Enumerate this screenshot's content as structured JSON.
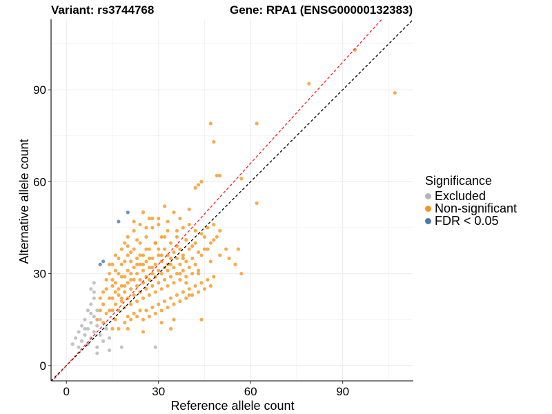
{
  "colors": {
    "excluded": "#b4b4b4",
    "non_significant": "#f7961e",
    "fdr": "#4a7aa6",
    "grid": "#ebebeb",
    "fit_line": "#ff1a1a",
    "identity_line": "#000000"
  },
  "legend": {
    "title": "Significance",
    "items": [
      {
        "key": "excluded",
        "label": "Excluded"
      },
      {
        "key": "non_significant",
        "label": "Non-significant"
      },
      {
        "key": "fdr",
        "label": "FDR < 0.05"
      }
    ]
  },
  "chart_data": {
    "type": "scatter",
    "title_left": "Variant: rs3744768",
    "title_right": "Gene: RPA1 (ENSG00000132383)",
    "xlabel": "Reference allele count",
    "ylabel": "Alternative allele count",
    "xlim": [
      -5,
      113
    ],
    "ylim": [
      -5,
      113
    ],
    "xticks": [
      0,
      30,
      60,
      90
    ],
    "yticks": [
      0,
      30,
      60,
      90
    ],
    "grid": true,
    "reference_lines": [
      {
        "name": "identity",
        "style": "dashed",
        "color": "#000000",
        "slope": 1,
        "intercept": 0
      },
      {
        "name": "fit",
        "style": "dashed",
        "color": "#ff1a1a",
        "slope": 1.1,
        "intercept": 0
      }
    ],
    "series": [
      {
        "name": "Excluded",
        "color": "#b4b4b4",
        "points": [
          [
            2,
            7
          ],
          [
            3,
            9
          ],
          [
            4,
            11
          ],
          [
            5,
            8
          ],
          [
            5,
            13
          ],
          [
            6,
            10
          ],
          [
            6,
            15
          ],
          [
            7,
            7
          ],
          [
            7,
            12
          ],
          [
            7,
            18
          ],
          [
            8,
            9
          ],
          [
            8,
            14
          ],
          [
            8,
            20
          ],
          [
            8,
            25
          ],
          [
            9,
            11
          ],
          [
            9,
            16
          ],
          [
            9,
            22
          ],
          [
            9,
            27
          ],
          [
            10,
            13
          ],
          [
            10,
            18
          ],
          [
            10,
            6
          ],
          [
            10,
            4
          ],
          [
            11,
            10
          ],
          [
            11,
            15
          ],
          [
            12,
            8
          ],
          [
            13,
            12
          ],
          [
            14,
            9
          ],
          [
            14,
            5
          ],
          [
            4,
            6
          ],
          [
            6,
            12
          ],
          [
            8,
            17
          ],
          [
            9,
            24
          ],
          [
            29,
            6
          ],
          [
            18,
            6
          ]
        ]
      },
      {
        "name": "Non-significant",
        "color": "#f7961e",
        "points": [
          [
            12,
            20
          ],
          [
            13,
            25
          ],
          [
            14,
            18
          ],
          [
            15,
            22
          ],
          [
            15,
            28
          ],
          [
            16,
            15
          ],
          [
            16,
            20
          ],
          [
            16,
            27
          ],
          [
            17,
            23
          ],
          [
            17,
            30
          ],
          [
            17,
            18
          ],
          [
            18,
            26
          ],
          [
            18,
            21
          ],
          [
            18,
            33
          ],
          [
            19,
            19
          ],
          [
            19,
            24
          ],
          [
            19,
            29
          ],
          [
            20,
            22
          ],
          [
            20,
            27
          ],
          [
            20,
            31
          ],
          [
            20,
            36
          ],
          [
            21,
            25
          ],
          [
            21,
            20
          ],
          [
            21,
            30
          ],
          [
            21,
            34
          ],
          [
            22,
            23
          ],
          [
            22,
            28
          ],
          [
            22,
            32
          ],
          [
            22,
            38
          ],
          [
            23,
            21
          ],
          [
            23,
            26
          ],
          [
            23,
            30
          ],
          [
            23,
            35
          ],
          [
            24,
            24
          ],
          [
            24,
            28
          ],
          [
            24,
            33
          ],
          [
            24,
            40
          ],
          [
            25,
            22
          ],
          [
            25,
            27
          ],
          [
            25,
            31
          ],
          [
            25,
            36
          ],
          [
            26,
            25
          ],
          [
            26,
            29
          ],
          [
            26,
            34
          ],
          [
            26,
            42
          ],
          [
            27,
            23
          ],
          [
            27,
            28
          ],
          [
            27,
            32
          ],
          [
            27,
            38
          ],
          [
            28,
            26
          ],
          [
            28,
            30
          ],
          [
            28,
            35
          ],
          [
            28,
            45
          ],
          [
            29,
            24
          ],
          [
            29,
            29
          ],
          [
            29,
            33
          ],
          [
            29,
            40
          ],
          [
            30,
            27
          ],
          [
            30,
            31
          ],
          [
            30,
            36
          ],
          [
            30,
            48
          ],
          [
            31,
            25
          ],
          [
            31,
            30
          ],
          [
            31,
            34
          ],
          [
            31,
            42
          ],
          [
            32,
            28
          ],
          [
            32,
            32
          ],
          [
            32,
            38
          ],
          [
            33,
            26
          ],
          [
            33,
            31
          ],
          [
            33,
            36
          ],
          [
            33,
            44
          ],
          [
            34,
            29
          ],
          [
            34,
            33
          ],
          [
            34,
            40
          ],
          [
            35,
            27
          ],
          [
            35,
            32
          ],
          [
            35,
            37
          ],
          [
            36,
            30
          ],
          [
            36,
            35
          ],
          [
            36,
            42
          ],
          [
            37,
            28
          ],
          [
            37,
            33
          ],
          [
            37,
            38
          ],
          [
            38,
            31
          ],
          [
            38,
            36
          ],
          [
            38,
            45
          ],
          [
            39,
            29
          ],
          [
            39,
            34
          ],
          [
            40,
            32
          ],
          [
            40,
            38
          ],
          [
            40,
            46
          ],
          [
            41,
            30
          ],
          [
            41,
            35
          ],
          [
            42,
            33
          ],
          [
            42,
            40
          ],
          [
            43,
            31
          ],
          [
            43,
            37
          ],
          [
            44,
            36
          ],
          [
            45,
            42
          ],
          [
            46,
            38
          ],
          [
            47,
            34
          ],
          [
            48,
            41
          ],
          [
            10,
            15
          ],
          [
            11,
            18
          ],
          [
            12,
            14
          ],
          [
            13,
            17
          ],
          [
            14,
            22
          ],
          [
            14,
            30
          ],
          [
            15,
            12
          ],
          [
            15,
            33
          ],
          [
            16,
            36
          ],
          [
            17,
            12
          ],
          [
            18,
            38
          ],
          [
            19,
            14
          ],
          [
            19,
            40
          ],
          [
            20,
            16
          ],
          [
            20,
            42
          ],
          [
            21,
            15
          ],
          [
            22,
            17
          ],
          [
            22,
            44
          ],
          [
            23,
            16
          ],
          [
            24,
            18
          ],
          [
            24,
            46
          ],
          [
            25,
            15
          ],
          [
            26,
            18
          ],
          [
            27,
            16
          ],
          [
            27,
            48
          ],
          [
            28,
            19
          ],
          [
            29,
            17
          ],
          [
            30,
            20
          ],
          [
            31,
            18
          ],
          [
            32,
            21
          ],
          [
            33,
            19
          ],
          [
            34,
            22
          ],
          [
            35,
            20
          ],
          [
            36,
            23
          ],
          [
            37,
            21
          ],
          [
            38,
            24
          ],
          [
            39,
            22
          ],
          [
            40,
            25
          ],
          [
            41,
            23
          ],
          [
            42,
            26
          ],
          [
            43,
            24
          ],
          [
            44,
            27
          ],
          [
            45,
            25
          ],
          [
            46,
            28
          ],
          [
            47,
            26
          ],
          [
            48,
            29
          ],
          [
            35,
            50
          ],
          [
            37,
            48
          ],
          [
            40,
            51
          ],
          [
            30,
            46
          ],
          [
            28,
            48
          ],
          [
            25,
            50
          ],
          [
            22,
            47
          ],
          [
            26,
            45
          ],
          [
            33,
            47
          ],
          [
            32,
            52
          ],
          [
            36,
            44
          ],
          [
            42,
            44
          ],
          [
            44,
            43
          ],
          [
            46,
            45
          ],
          [
            48,
            46
          ],
          [
            50,
            44
          ],
          [
            45,
            38
          ],
          [
            13,
            28
          ],
          [
            14,
            33
          ],
          [
            15,
            26
          ],
          [
            16,
            31
          ],
          [
            17,
            35
          ],
          [
            18,
            29
          ],
          [
            19,
            34
          ],
          [
            20,
            39
          ],
          [
            21,
            37
          ],
          [
            23,
            41
          ],
          [
            12,
            24
          ],
          [
            11,
            22
          ],
          [
            31,
            14
          ],
          [
            35,
            15
          ],
          [
            25,
            11
          ],
          [
            20,
            12
          ],
          [
            34,
            12
          ],
          [
            44,
            15
          ],
          [
            47,
            40
          ],
          [
            49,
            42
          ],
          [
            50,
            36
          ],
          [
            52,
            38
          ],
          [
            53,
            35
          ],
          [
            55,
            33
          ],
          [
            56,
            38
          ],
          [
            44,
            60
          ],
          [
            49,
            62
          ],
          [
            50,
            62
          ],
          [
            42,
            58
          ],
          [
            43,
            59
          ],
          [
            57,
            61
          ],
          [
            48,
            73
          ],
          [
            47,
            79
          ],
          [
            62,
            79
          ],
          [
            57,
            30
          ],
          [
            62,
            53
          ],
          [
            79,
            92
          ],
          [
            94,
            103
          ],
          [
            107,
            89
          ],
          [
            43,
            30
          ],
          [
            40,
            23
          ],
          [
            38,
            35
          ],
          [
            32,
            42
          ],
          [
            29,
            40
          ],
          [
            24,
            36
          ],
          [
            18,
            22
          ],
          [
            16,
            24
          ],
          [
            15,
            18
          ],
          [
            27,
            35
          ],
          [
            33,
            33
          ],
          [
            36,
            39
          ],
          [
            39,
            41
          ],
          [
            41,
            39
          ],
          [
            26,
            38
          ],
          [
            30,
            38
          ],
          [
            23,
            33
          ],
          [
            21,
            28
          ],
          [
            19,
            26
          ],
          [
            17,
            25
          ],
          [
            25,
            33
          ],
          [
            28,
            32
          ],
          [
            31,
            36
          ],
          [
            34,
            35
          ],
          [
            37,
            30
          ],
          [
            39,
            27
          ]
        ]
      },
      {
        "name": "FDR < 0.05",
        "color": "#4a7aa6",
        "points": [
          [
            11,
            33
          ],
          [
            12,
            34
          ],
          [
            17,
            47
          ],
          [
            20,
            50
          ]
        ]
      }
    ]
  }
}
